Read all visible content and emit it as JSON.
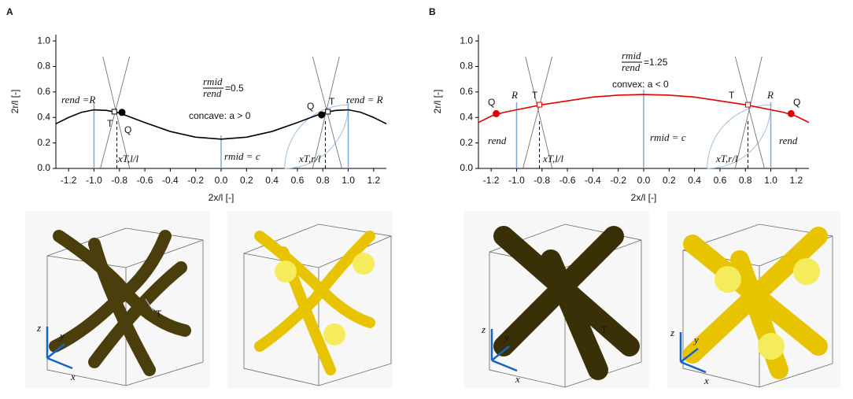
{
  "chart_data": [
    {
      "type": "line",
      "panel": "A",
      "ylabel": "2r/l [-]",
      "xlabel": "2x/l [-]",
      "color": "#000000",
      "x": [
        -1.3,
        -1.2,
        -1.1,
        -1.0,
        -0.9,
        -0.8,
        -0.6,
        -0.4,
        -0.2,
        0,
        0.2,
        0.4,
        0.6,
        0.8,
        0.9,
        1.0,
        1.1,
        1.2,
        1.3
      ],
      "values": [
        0.35,
        0.4,
        0.44,
        0.46,
        0.455,
        0.435,
        0.36,
        0.29,
        0.245,
        0.23,
        0.245,
        0.29,
        0.36,
        0.435,
        0.455,
        0.46,
        0.44,
        0.4,
        0.35
      ],
      "points": {
        "x": [
          -0.78,
          0.79
        ],
        "values": [
          0.44,
          0.42
        ],
        "color": "#000000"
      },
      "tangent_points": {
        "x": [
          -0.84,
          0.84
        ],
        "values": [
          0.445,
          0.445
        ]
      },
      "xlim": [
        -1.3,
        1.3
      ],
      "ylim": [
        0,
        1.05
      ],
      "xticks": [
        -1.2,
        {
          "value": -1,
          "label": "-1.0"
        },
        -0.8,
        -0.6,
        -0.4,
        -0.2,
        {
          "value": 0,
          "label": "0.0"
        },
        0.2,
        0.4,
        0.6,
        0.8,
        {
          "value": 1,
          "label": "1.0"
        },
        1.2
      ],
      "yticks": [
        {
          "value": 0,
          "label": "0.0"
        },
        0.2,
        0.4,
        0.6,
        0.8,
        {
          "value": 1,
          "label": "1.0"
        }
      ],
      "ratio": {
        "numerator": "rmid",
        "denominator": "rend",
        "value": "=0.5"
      },
      "annotations": [
        "rend =R",
        "T",
        "Q",
        "concave: a > 0",
        "rmid = c",
        "xT,l/l",
        "xT,r/l",
        "Q",
        "T",
        "rend = R"
      ]
    },
    {
      "type": "line",
      "panel": "B",
      "ylabel": "2r/l [-]",
      "xlabel": "2x/l [-]",
      "color": "#e00000",
      "x": [
        -1.3,
        -1.2,
        -1.1,
        -1.0,
        -0.8,
        -0.6,
        -0.4,
        -0.2,
        0,
        0.2,
        0.4,
        0.6,
        0.8,
        1.0,
        1.1,
        1.2,
        1.3
      ],
      "values": [
        0.36,
        0.41,
        0.44,
        0.46,
        0.5,
        0.53,
        0.56,
        0.575,
        0.58,
        0.575,
        0.56,
        0.53,
        0.5,
        0.46,
        0.44,
        0.41,
        0.36
      ],
      "points": {
        "x": [
          -1.16,
          1.16
        ],
        "values": [
          0.43,
          0.43
        ],
        "color": "#e00000"
      },
      "tangent_points": {
        "x": [
          -0.82,
          0.82
        ],
        "values": [
          0.5,
          0.5
        ]
      },
      "xlim": [
        -1.3,
        1.3
      ],
      "ylim": [
        0,
        1.05
      ],
      "xticks": [
        -1.2,
        {
          "value": -1,
          "label": "-1.0"
        },
        -0.8,
        -0.6,
        -0.4,
        -0.2,
        {
          "value": 0,
          "label": "0.0"
        },
        0.2,
        0.4,
        0.6,
        0.8,
        {
          "value": 1,
          "label": "1.0"
        },
        1.2
      ],
      "yticks": [
        {
          "value": 0,
          "label": "0.0"
        },
        0.2,
        0.4,
        0.6,
        0.8,
        {
          "value": 1,
          "label": "1.0"
        }
      ],
      "ratio": {
        "numerator": "rmid",
        "denominator": "rend",
        "value": "=1.25"
      },
      "annotations": [
        "convex: a < 0",
        "Q",
        "R",
        "T",
        "rend",
        "rmid = c",
        "xT,l/l",
        "xT,r/l",
        "T",
        "R",
        "Q",
        "rend"
      ]
    }
  ],
  "renders": [
    {
      "marker": "T",
      "axes": [
        "z",
        "y",
        "x"
      ]
    },
    {
      "axes": []
    },
    {
      "marker": "T",
      "axes": [
        "z",
        "y",
        "x"
      ]
    },
    {
      "axes": [
        "z",
        "y",
        "x"
      ]
    }
  ]
}
